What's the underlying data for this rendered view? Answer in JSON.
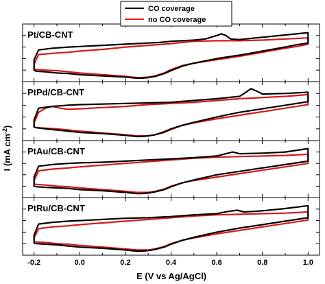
{
  "chart_data": {
    "type": "line",
    "xlabel": "E (V vs Ag/AgCl)",
    "ylabel": "I (mA cm",
    "ylabel_sup": "-2",
    "ylabel_end": ")",
    "xlim": [
      -0.25,
      1.05
    ],
    "xticks": [
      -0.2,
      0.0,
      0.2,
      0.4,
      0.6,
      0.8,
      1.0
    ],
    "xtick_labels": [
      "-0.2",
      "0.0",
      "0.2",
      "0.4",
      "0.6",
      "0.8",
      "1.0"
    ],
    "ylim": [
      0,
      1
    ],
    "y_tick_labels_shown": false,
    "legend": {
      "placement": "top-center",
      "entries": [
        {
          "name": "CO coverage",
          "color": "#000000"
        },
        {
          "name": "no CO coverage",
          "color": "#d81818"
        }
      ]
    },
    "panels": [
      {
        "label": "Pt/CB-CNT",
        "series": [
          {
            "name": "CO coverage",
            "color": "#000000",
            "x": [
              -0.2,
              -0.18,
              -0.12,
              -0.05,
              0.0,
              0.1,
              0.2,
              0.3,
              0.35,
              0.4,
              0.45,
              0.5,
              0.55,
              0.6,
              0.62,
              0.64,
              0.66,
              0.7,
              0.8,
              0.9,
              1.0,
              1.0,
              0.95,
              0.9,
              0.8,
              0.7,
              0.6,
              0.5,
              0.45,
              0.4,
              0.37,
              0.33,
              0.3,
              0.27,
              0.25,
              0.2,
              0.1,
              0.0,
              -0.05,
              -0.1,
              -0.15,
              -0.19,
              -0.2,
              -0.2
            ],
            "y": [
              0.38,
              0.55,
              0.58,
              0.6,
              0.61,
              0.63,
              0.65,
              0.67,
              0.68,
              0.7,
              0.71,
              0.72,
              0.74,
              0.8,
              0.83,
              0.8,
              0.74,
              0.73,
              0.77,
              0.81,
              0.85,
              0.67,
              0.64,
              0.6,
              0.53,
              0.46,
              0.4,
              0.32,
              0.27,
              0.19,
              0.14,
              0.09,
              0.07,
              0.06,
              0.06,
              0.08,
              0.1,
              0.12,
              0.14,
              0.15,
              0.17,
              0.18,
              0.2,
              0.38
            ]
          },
          {
            "name": "no CO coverage",
            "color": "#d81818",
            "x": [
              -0.2,
              -0.18,
              -0.12,
              -0.05,
              0.0,
              0.1,
              0.2,
              0.3,
              0.4,
              0.5,
              0.6,
              0.7,
              0.8,
              0.9,
              1.0,
              1.0,
              0.95,
              0.9,
              0.8,
              0.7,
              0.6,
              0.5,
              0.45,
              0.4,
              0.37,
              0.33,
              0.3,
              0.27,
              0.25,
              0.2,
              0.1,
              0.0,
              -0.05,
              -0.1,
              -0.15,
              -0.19,
              -0.2,
              -0.2
            ],
            "y": [
              0.3,
              0.47,
              0.49,
              0.51,
              0.53,
              0.56,
              0.6,
              0.63,
              0.66,
              0.7,
              0.71,
              0.71,
              0.72,
              0.74,
              0.76,
              0.65,
              0.61,
              0.58,
              0.51,
              0.44,
              0.38,
              0.32,
              0.28,
              0.21,
              0.15,
              0.1,
              0.08,
              0.07,
              0.07,
              0.09,
              0.12,
              0.15,
              0.17,
              0.19,
              0.2,
              0.21,
              0.22,
              0.3
            ]
          }
        ]
      },
      {
        "label": "PtPd/CB-CNT",
        "series": [
          {
            "name": "CO coverage",
            "color": "#000000",
            "x": [
              -0.2,
              -0.18,
              -0.12,
              -0.05,
              0.0,
              0.1,
              0.2,
              0.3,
              0.4,
              0.5,
              0.6,
              0.7,
              0.72,
              0.75,
              0.78,
              0.8,
              0.9,
              1.0,
              1.0,
              0.95,
              0.9,
              0.8,
              0.7,
              0.6,
              0.5,
              0.45,
              0.4,
              0.37,
              0.33,
              0.3,
              0.27,
              0.25,
              0.2,
              0.1,
              0.0,
              -0.05,
              -0.1,
              -0.15,
              -0.19,
              -0.2,
              -0.2
            ],
            "y": [
              0.35,
              0.55,
              0.58,
              0.6,
              0.61,
              0.62,
              0.63,
              0.64,
              0.65,
              0.68,
              0.71,
              0.75,
              0.8,
              0.88,
              0.83,
              0.79,
              0.8,
              0.82,
              0.66,
              0.63,
              0.6,
              0.54,
              0.48,
              0.4,
              0.31,
              0.26,
              0.2,
              0.15,
              0.1,
              0.08,
              0.07,
              0.07,
              0.09,
              0.12,
              0.14,
              0.16,
              0.18,
              0.2,
              0.22,
              0.23,
              0.35
            ]
          },
          {
            "name": "no CO coverage",
            "color": "#d81818",
            "x": [
              -0.2,
              -0.18,
              -0.15,
              -0.12,
              -0.1,
              -0.05,
              0.0,
              0.1,
              0.2,
              0.3,
              0.4,
              0.5,
              0.6,
              0.7,
              0.8,
              0.9,
              1.0,
              1.0,
              0.95,
              0.9,
              0.8,
              0.7,
              0.6,
              0.5,
              0.45,
              0.4,
              0.37,
              0.33,
              0.3,
              0.27,
              0.25,
              0.2,
              0.1,
              0.0,
              -0.05,
              -0.1,
              -0.15,
              -0.19,
              -0.2,
              -0.2
            ],
            "y": [
              0.3,
              0.48,
              0.55,
              0.58,
              0.56,
              0.53,
              0.54,
              0.56,
              0.58,
              0.61,
              0.63,
              0.65,
              0.68,
              0.71,
              0.73,
              0.75,
              0.78,
              0.61,
              0.58,
              0.55,
              0.49,
              0.43,
              0.37,
              0.3,
              0.26,
              0.19,
              0.14,
              0.1,
              0.08,
              0.08,
              0.08,
              0.1,
              0.13,
              0.16,
              0.18,
              0.2,
              0.21,
              0.22,
              0.23,
              0.3
            ]
          }
        ]
      },
      {
        "label": "PtAu/CB-CNT",
        "series": [
          {
            "name": "CO coverage",
            "color": "#000000",
            "x": [
              -0.2,
              -0.18,
              -0.12,
              -0.05,
              0.0,
              0.1,
              0.2,
              0.3,
              0.4,
              0.5,
              0.6,
              0.64,
              0.67,
              0.7,
              0.8,
              0.9,
              1.0,
              1.0,
              0.95,
              0.9,
              0.8,
              0.7,
              0.6,
              0.5,
              0.45,
              0.4,
              0.37,
              0.33,
              0.3,
              0.27,
              0.25,
              0.2,
              0.1,
              0.0,
              -0.05,
              -0.1,
              -0.15,
              -0.19,
              -0.2,
              -0.2
            ],
            "y": [
              0.36,
              0.55,
              0.58,
              0.6,
              0.61,
              0.62,
              0.64,
              0.66,
              0.68,
              0.7,
              0.73,
              0.77,
              0.8,
              0.77,
              0.78,
              0.8,
              0.86,
              0.64,
              0.61,
              0.58,
              0.52,
              0.46,
              0.4,
              0.31,
              0.26,
              0.19,
              0.14,
              0.1,
              0.08,
              0.07,
              0.07,
              0.09,
              0.12,
              0.14,
              0.16,
              0.17,
              0.18,
              0.19,
              0.2,
              0.36
            ]
          },
          {
            "name": "no CO coverage",
            "color": "#d81818",
            "x": [
              -0.2,
              -0.18,
              -0.12,
              -0.05,
              0.0,
              0.1,
              0.2,
              0.3,
              0.4,
              0.5,
              0.6,
              0.7,
              0.8,
              0.9,
              1.0,
              1.0,
              0.95,
              0.9,
              0.8,
              0.7,
              0.6,
              0.5,
              0.45,
              0.4,
              0.37,
              0.33,
              0.3,
              0.27,
              0.25,
              0.2,
              0.1,
              0.0,
              -0.05,
              -0.1,
              -0.15,
              -0.19,
              -0.2,
              -0.2
            ],
            "y": [
              0.3,
              0.47,
              0.5,
              0.52,
              0.54,
              0.57,
              0.6,
              0.63,
              0.66,
              0.69,
              0.71,
              0.72,
              0.73,
              0.74,
              0.76,
              0.6,
              0.57,
              0.54,
              0.48,
              0.42,
              0.36,
              0.3,
              0.26,
              0.2,
              0.15,
              0.11,
              0.09,
              0.09,
              0.09,
              0.11,
              0.14,
              0.17,
              0.19,
              0.2,
              0.22,
              0.23,
              0.24,
              0.3
            ]
          }
        ]
      },
      {
        "label": "PtRu/CB-CNT",
        "series": [
          {
            "name": "CO coverage",
            "color": "#000000",
            "x": [
              -0.2,
              -0.18,
              -0.12,
              -0.05,
              0.0,
              0.1,
              0.2,
              0.3,
              0.4,
              0.5,
              0.6,
              0.65,
              0.69,
              0.72,
              0.8,
              0.9,
              1.0,
              1.0,
              0.95,
              0.9,
              0.8,
              0.7,
              0.6,
              0.5,
              0.45,
              0.4,
              0.37,
              0.33,
              0.3,
              0.27,
              0.25,
              0.2,
              0.1,
              0.0,
              -0.05,
              -0.1,
              -0.15,
              -0.19,
              -0.2,
              -0.2
            ],
            "y": [
              0.35,
              0.54,
              0.57,
              0.59,
              0.6,
              0.62,
              0.64,
              0.65,
              0.67,
              0.7,
              0.72,
              0.76,
              0.78,
              0.75,
              0.77,
              0.81,
              0.86,
              0.65,
              0.62,
              0.59,
              0.53,
              0.47,
              0.4,
              0.31,
              0.26,
              0.19,
              0.14,
              0.1,
              0.08,
              0.07,
              0.07,
              0.09,
              0.12,
              0.14,
              0.16,
              0.18,
              0.19,
              0.2,
              0.21,
              0.35
            ]
          },
          {
            "name": "no CO coverage",
            "color": "#d81818",
            "x": [
              -0.2,
              -0.18,
              -0.12,
              -0.05,
              0.0,
              0.1,
              0.2,
              0.3,
              0.4,
              0.5,
              0.6,
              0.7,
              0.8,
              0.9,
              1.0,
              1.0,
              0.95,
              0.9,
              0.8,
              0.7,
              0.6,
              0.5,
              0.45,
              0.4,
              0.37,
              0.33,
              0.3,
              0.27,
              0.25,
              0.2,
              0.1,
              0.0,
              -0.05,
              -0.1,
              -0.15,
              -0.19,
              -0.2,
              -0.2
            ],
            "y": [
              0.3,
              0.46,
              0.49,
              0.51,
              0.53,
              0.56,
              0.59,
              0.62,
              0.65,
              0.68,
              0.7,
              0.71,
              0.72,
              0.73,
              0.75,
              0.61,
              0.58,
              0.55,
              0.49,
              0.43,
              0.37,
              0.3,
              0.26,
              0.2,
              0.15,
              0.11,
              0.09,
              0.09,
              0.09,
              0.11,
              0.14,
              0.17,
              0.19,
              0.2,
              0.22,
              0.23,
              0.24,
              0.3
            ]
          }
        ]
      }
    ]
  }
}
